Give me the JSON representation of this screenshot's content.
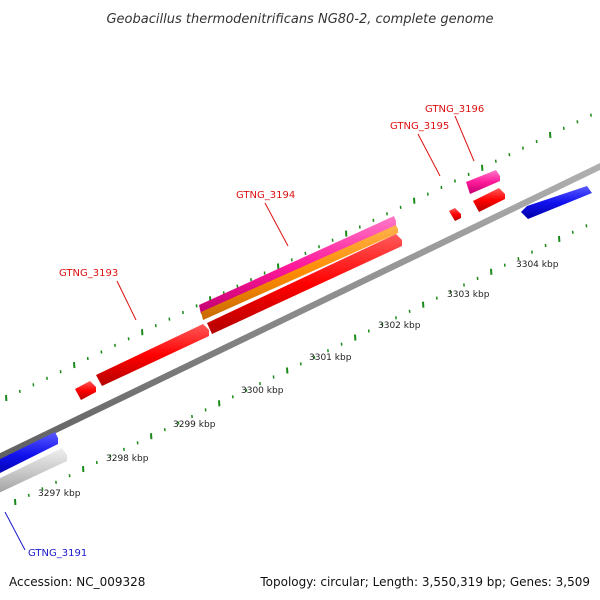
{
  "title": "Geobacillus thermodenitrificans NG80-2, complete genome",
  "footer": {
    "accession": "Accession: NC_009328",
    "topology": "Topology: circular; Length: 3,550,319 bp; Genes: 3,509"
  },
  "scale_labels": [
    "3297 kbp",
    "3298 kbp",
    "3299 kbp",
    "3300 kbp",
    "3301 kbp",
    "3302 kbp",
    "3303 kbp",
    "3304 kbp"
  ],
  "gene_labels": [
    {
      "id": "GTNG_3191",
      "color": "#1a1acc"
    },
    {
      "id": "GTNG_3193",
      "color": "#dd1111"
    },
    {
      "id": "GTNG_3194",
      "color": "#dd1111"
    },
    {
      "id": "GTNG_3195",
      "color": "#dd1111"
    },
    {
      "id": "GTNG_3196",
      "color": "#dd1111"
    }
  ],
  "colors": {
    "forward_gene": "#ff0000",
    "reverse_gene": "#1111ee",
    "cds_track": "#ff1a9a",
    "orange_track": "#ff8c00",
    "gray_feature": "#c8c8c8",
    "backbone": "#8a8a8a",
    "ticks": "#1a8a1a"
  }
}
